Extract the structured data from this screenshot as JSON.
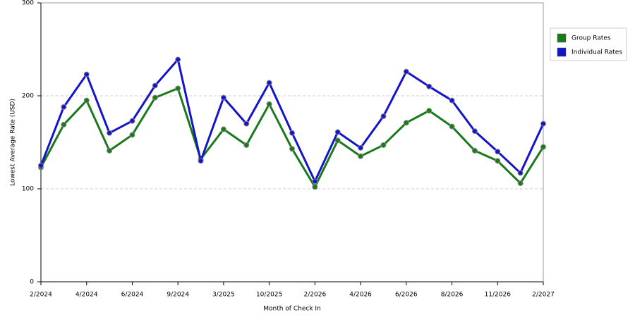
{
  "chart_data": {
    "type": "line",
    "x_label": "Month of Check In",
    "y_label": "Lowest Average Rate (USD)",
    "categories": [
      "2/2024",
      null,
      "4/2024",
      null,
      "6/2024",
      null,
      "9/2024",
      null,
      "3/2025",
      null,
      "10/2025",
      null,
      "2/2026",
      null,
      "4/2026",
      null,
      "6/2026",
      null,
      "8/2026",
      null,
      "11/2026",
      null,
      "2/2027"
    ],
    "series": [
      {
        "name": "Group Rates",
        "color": "#1a7a1a",
        "values": [
          123,
          169,
          195,
          141,
          158,
          198,
          208,
          132,
          164,
          147,
          191,
          143,
          102,
          152,
          135,
          147,
          171,
          184,
          167,
          141,
          130,
          106,
          145
        ]
      },
      {
        "name": "Individual Rates",
        "color": "#1414c8",
        "values": [
          125,
          188,
          223,
          160,
          173,
          211,
          239,
          130,
          198,
          170,
          214,
          160,
          108,
          161,
          144,
          178,
          226,
          210,
          195,
          162,
          140,
          117,
          170
        ]
      }
    ],
    "ylim": [
      0,
      300
    ],
    "yticks": [
      0,
      100,
      200,
      300
    ],
    "grid": true
  }
}
